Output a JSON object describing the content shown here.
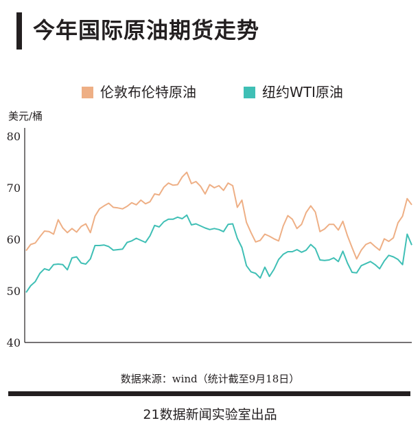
{
  "header": {
    "title": "今年国际原油期货走势"
  },
  "colors": {
    "brent": "#eeaf85",
    "wti": "#3fbfb5",
    "axis": "#231f20"
  },
  "source_text": "数据来源：wind（统计截至9月18日）",
  "footer_text": "21数据新闻实验室出品",
  "chart_data": {
    "type": "line",
    "title": "今年国际原油期货走势",
    "ylabel": "美元/桶",
    "xlabel": "",
    "ylim": [
      40,
      80
    ],
    "yticks": [
      40,
      50,
      60,
      70,
      80
    ],
    "legend_position": "top",
    "grid": false,
    "series": [
      {
        "name": "伦敦布伦特原油",
        "color": "#eeaf85",
        "values": [
          57.8,
          59.0,
          59.3,
          60.5,
          61.6,
          61.5,
          61.0,
          63.8,
          62.2,
          61.3,
          62.1,
          61.4,
          62.5,
          63.0,
          61.3,
          64.5,
          65.9,
          66.5,
          67.0,
          66.2,
          66.1,
          65.9,
          66.4,
          67.1,
          66.7,
          67.6,
          66.9,
          67.3,
          68.8,
          68.6,
          70.1,
          70.9,
          70.5,
          70.6,
          72.1,
          73.0,
          70.8,
          71.2,
          70.3,
          68.8,
          70.6,
          70.0,
          70.4,
          69.5,
          70.9,
          70.4,
          66.2,
          67.6,
          63.3,
          61.3,
          59.5,
          59.8,
          61.0,
          60.6,
          60.1,
          59.7,
          62.6,
          64.6,
          63.9,
          62.1,
          62.9,
          65.2,
          66.5,
          65.3,
          61.5,
          62.0,
          62.9,
          62.9,
          61.8,
          63.5,
          60.7,
          58.4,
          56.2,
          57.9,
          59.0,
          59.4,
          58.6,
          57.9,
          60.1,
          59.6,
          60.3,
          63.2,
          64.5,
          67.9,
          66.7
        ]
      },
      {
        "name": "纽约WTI原油",
        "color": "#3fbfb5",
        "values": [
          49.7,
          51.0,
          51.8,
          53.4,
          54.3,
          54.0,
          55.1,
          55.2,
          55.1,
          54.1,
          56.4,
          56.6,
          55.4,
          55.2,
          56.2,
          58.8,
          58.8,
          58.9,
          58.6,
          57.9,
          58.0,
          58.1,
          59.4,
          59.7,
          60.2,
          59.8,
          59.4,
          60.7,
          62.7,
          62.4,
          63.4,
          63.9,
          63.9,
          64.3,
          64.0,
          64.7,
          62.8,
          63.0,
          62.6,
          62.2,
          61.9,
          62.1,
          61.9,
          61.5,
          62.9,
          63.0,
          60.2,
          58.4,
          54.9,
          53.7,
          53.4,
          52.5,
          54.6,
          52.8,
          54.2,
          56.1,
          57.1,
          57.6,
          57.6,
          58.0,
          57.5,
          57.9,
          59.0,
          58.2,
          56.0,
          55.9,
          56.0,
          56.4,
          55.7,
          57.7,
          55.4,
          53.6,
          53.5,
          54.9,
          55.3,
          55.7,
          55.1,
          54.3,
          55.8,
          56.9,
          56.6,
          56.1,
          55.1,
          61.0,
          58.9
        ]
      }
    ]
  }
}
